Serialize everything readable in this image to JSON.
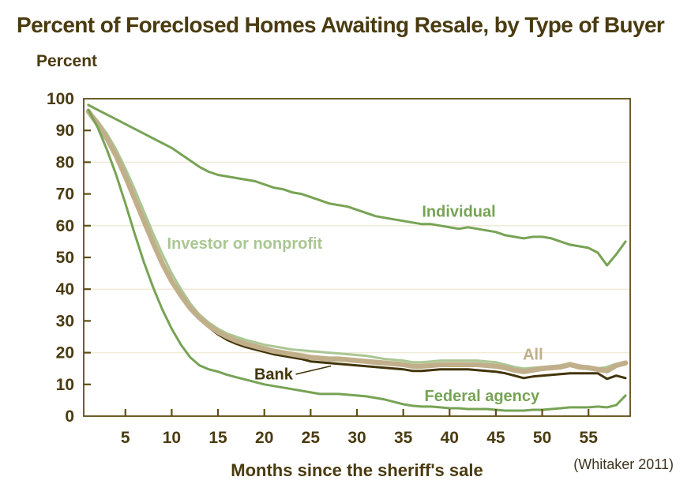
{
  "title": "Percent of Foreclosed Homes Awaiting Resale, by Type of Buyer",
  "y_axis_header": "Percent",
  "x_axis_title": "Months since the sheriff's sale",
  "citation": "(Whitaker 2011)",
  "colors": {
    "text_dark": "#4a3b10",
    "axis_frame": "#5e4d16",
    "gridline": "#f0ebd8",
    "green": "#77a355",
    "light_green": "#aac793",
    "tan": "#c0af8a",
    "dark_brown": "#433509",
    "citation_text": "#3c351f",
    "background": "#ffffff"
  },
  "chart_data": {
    "type": "line",
    "title": "Percent of Foreclosed Homes Awaiting Resale, by Type of Buyer",
    "xlabel": "Months since the sheriff's sale",
    "ylabel": "Percent",
    "xlim": [
      0.5,
      59.5
    ],
    "ylim": [
      0,
      100
    ],
    "x_ticks": [
      5,
      10,
      15,
      20,
      25,
      30,
      35,
      40,
      45,
      50,
      55
    ],
    "y_ticks": [
      0,
      10,
      20,
      30,
      40,
      50,
      60,
      70,
      80,
      90,
      100
    ],
    "gridlines_y": [
      20,
      40,
      60,
      80
    ],
    "grid": "horizontal only, very faint",
    "legend_position": "inline labels next to lines",
    "x": [
      1,
      2,
      3,
      4,
      5,
      6,
      7,
      8,
      9,
      10,
      11,
      12,
      13,
      14,
      15,
      16,
      17,
      18,
      19,
      20,
      21,
      22,
      23,
      24,
      25,
      26,
      27,
      28,
      29,
      30,
      31,
      32,
      33,
      34,
      35,
      36,
      37,
      38,
      39,
      40,
      41,
      42,
      43,
      44,
      45,
      46,
      47,
      48,
      49,
      50,
      51,
      52,
      53,
      54,
      55,
      56,
      57,
      58,
      59
    ],
    "draw_order": [
      1,
      3,
      2,
      4,
      0
    ],
    "series": [
      {
        "name": "Individual",
        "color": "#77a355",
        "width": 3,
        "values": [
          98,
          96.5,
          95,
          93.5,
          92,
          90.5,
          89,
          87.5,
          86,
          84.5,
          82.5,
          80.5,
          78.5,
          77,
          76,
          75.5,
          75,
          74.5,
          74,
          73,
          72,
          71.5,
          70.5,
          70,
          69,
          68,
          67,
          66.5,
          66,
          65,
          64,
          63,
          62.5,
          62,
          61.5,
          61,
          60.5,
          60.5,
          60,
          59.5,
          59,
          59.5,
          59,
          58.5,
          58,
          57,
          56.5,
          56,
          56.5,
          56.5,
          56,
          55,
          54,
          53.5,
          53,
          51.5,
          47.5,
          51,
          55
        ]
      },
      {
        "name": "Investor or nonprofit",
        "color": "#aac793",
        "width": 3,
        "values": [
          96.5,
          93,
          89,
          84,
          78,
          71.5,
          64.5,
          57.5,
          51,
          45,
          40,
          35.5,
          32,
          29.5,
          27.5,
          26,
          25,
          24,
          23.25,
          22.5,
          22,
          21.5,
          21,
          20.75,
          20.5,
          20.25,
          20,
          19.75,
          19.5,
          19.25,
          19,
          18.5,
          18,
          17.75,
          17.5,
          17,
          17,
          17.25,
          17.5,
          17.5,
          17.5,
          17.5,
          17.5,
          17.25,
          17,
          16.25,
          15.5,
          15,
          15.25,
          15.5,
          15.75,
          16,
          16.75,
          16,
          15.5,
          15,
          15.5,
          16.5,
          16.75
        ]
      },
      {
        "name": "All",
        "color": "#c0af8a",
        "width": 6.5,
        "values": [
          96,
          92,
          87.5,
          82,
          75.5,
          68.5,
          61.5,
          54.5,
          48,
          42.5,
          38,
          34,
          31,
          28.5,
          26.5,
          25,
          23.75,
          22.75,
          22,
          21.25,
          20.5,
          20,
          19.5,
          19,
          18.5,
          18.25,
          18,
          18,
          17.75,
          17.5,
          17.25,
          17,
          16.75,
          16.5,
          16.25,
          15.75,
          15.75,
          16,
          16.25,
          16.25,
          16.25,
          16.25,
          16.25,
          16,
          15.75,
          15.25,
          14.5,
          14,
          14.5,
          15,
          15.25,
          15.5,
          16.25,
          15.5,
          15.25,
          14.75,
          14.25,
          16,
          16.75
        ]
      },
      {
        "name": "Bank",
        "color": "#433509",
        "width": 3,
        "values": [
          95.5,
          91.5,
          87,
          81.5,
          75,
          68,
          61,
          54,
          47.5,
          42,
          37.5,
          33.5,
          30.5,
          28,
          25.75,
          24,
          22.75,
          21.75,
          21,
          20.25,
          19.5,
          19,
          18.5,
          18,
          17.25,
          17,
          16.75,
          16.5,
          16.25,
          16,
          15.75,
          15.5,
          15.25,
          15,
          14.75,
          14.25,
          14.25,
          14.5,
          14.75,
          14.75,
          14.75,
          14.75,
          14.5,
          14.25,
          14,
          13.5,
          12.75,
          12,
          12.5,
          12.75,
          13,
          13.25,
          13.5,
          13.5,
          13.5,
          13.5,
          11.75,
          12.75,
          12
        ]
      },
      {
        "name": "Federal agency",
        "color": "#77a355",
        "width": 3,
        "values": [
          96.5,
          91,
          84,
          76,
          67,
          57.5,
          48.5,
          40.5,
          33.5,
          27.5,
          22.5,
          18.5,
          16,
          14.75,
          14,
          13,
          12.25,
          11.5,
          10.75,
          10,
          9.5,
          9,
          8.5,
          8,
          7.5,
          7,
          7,
          7,
          6.75,
          6.5,
          6.25,
          5.75,
          5.25,
          4.5,
          3.75,
          3.25,
          3,
          3,
          2.75,
          2.5,
          2.5,
          2.25,
          2.25,
          2.25,
          2,
          1.75,
          1.75,
          1.75,
          2,
          2,
          2.25,
          2.5,
          2.75,
          2.75,
          2.75,
          3,
          2.75,
          3.5,
          6.5
        ]
      }
    ],
    "annotations": [
      {
        "text": "Individual",
        "x": 41,
        "y": 64.5,
        "color": "#77a355",
        "anchor": "middle"
      },
      {
        "text": "Investor or nonprofit",
        "x": 9.5,
        "y": 54.5,
        "color": "#aac793",
        "anchor": "start"
      },
      {
        "text": "All",
        "x": 49,
        "y": 19.5,
        "color": "#c0af8a",
        "anchor": "middle"
      },
      {
        "text": "Bank",
        "x": 21,
        "y": 13.25,
        "color": "#433509",
        "anchor": "middle"
      },
      {
        "text": "Federal agency",
        "x": 43.5,
        "y": 6.5,
        "color": "#77a355",
        "anchor": "middle"
      }
    ],
    "bank_pointer": {
      "x1": 23.4,
      "y1": 13.2,
      "x2": 27.2,
      "y2": 15.8
    }
  }
}
